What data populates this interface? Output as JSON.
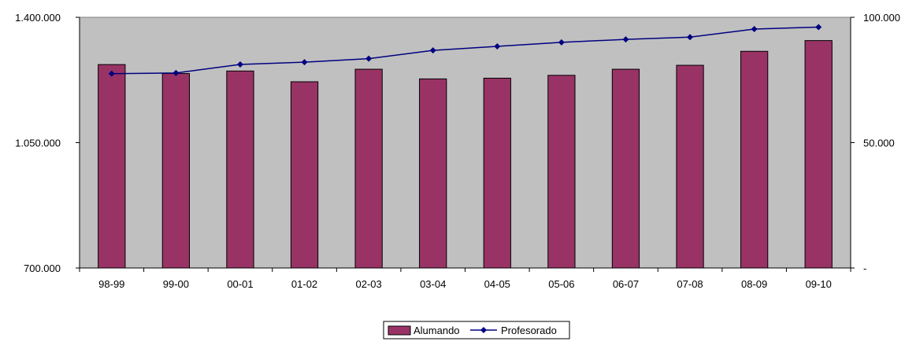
{
  "chart_data": {
    "type": "bar",
    "categories": [
      "98-99",
      "99-00",
      "00-01",
      "01-02",
      "02-03",
      "03-04",
      "04-05",
      "05-06",
      "06-07",
      "07-08",
      "08-09",
      "09-10"
    ],
    "series": [
      {
        "name": "Alumando",
        "type": "bar",
        "axis": "left",
        "color": "#993366",
        "values": [
          1268000,
          1243000,
          1250000,
          1220000,
          1255000,
          1228000,
          1230000,
          1238000,
          1255000,
          1266000,
          1305000,
          1335000
        ]
      },
      {
        "name": "Profesorado",
        "type": "line",
        "axis": "right",
        "color": "#000080",
        "marker": "diamond",
        "values": [
          77500,
          77800,
          81200,
          82100,
          83500,
          86800,
          88400,
          90000,
          91200,
          92100,
          95300,
          96100
        ]
      }
    ],
    "y_left": {
      "ylim": [
        700000,
        1400000
      ],
      "ticks": [
        "700.000",
        "1.050.000",
        "1.400.000"
      ],
      "tick_values": [
        700000,
        1050000,
        1400000
      ]
    },
    "y_right": {
      "ylim": [
        0,
        100000
      ],
      "ticks": [
        "-",
        "50.000",
        "100.000"
      ],
      "tick_values": [
        0,
        50000,
        100000
      ]
    },
    "plot_background": "#c0c0c0",
    "grid": false,
    "legend_position": "bottom-center",
    "title": "",
    "xlabel": "",
    "ylabel": ""
  }
}
